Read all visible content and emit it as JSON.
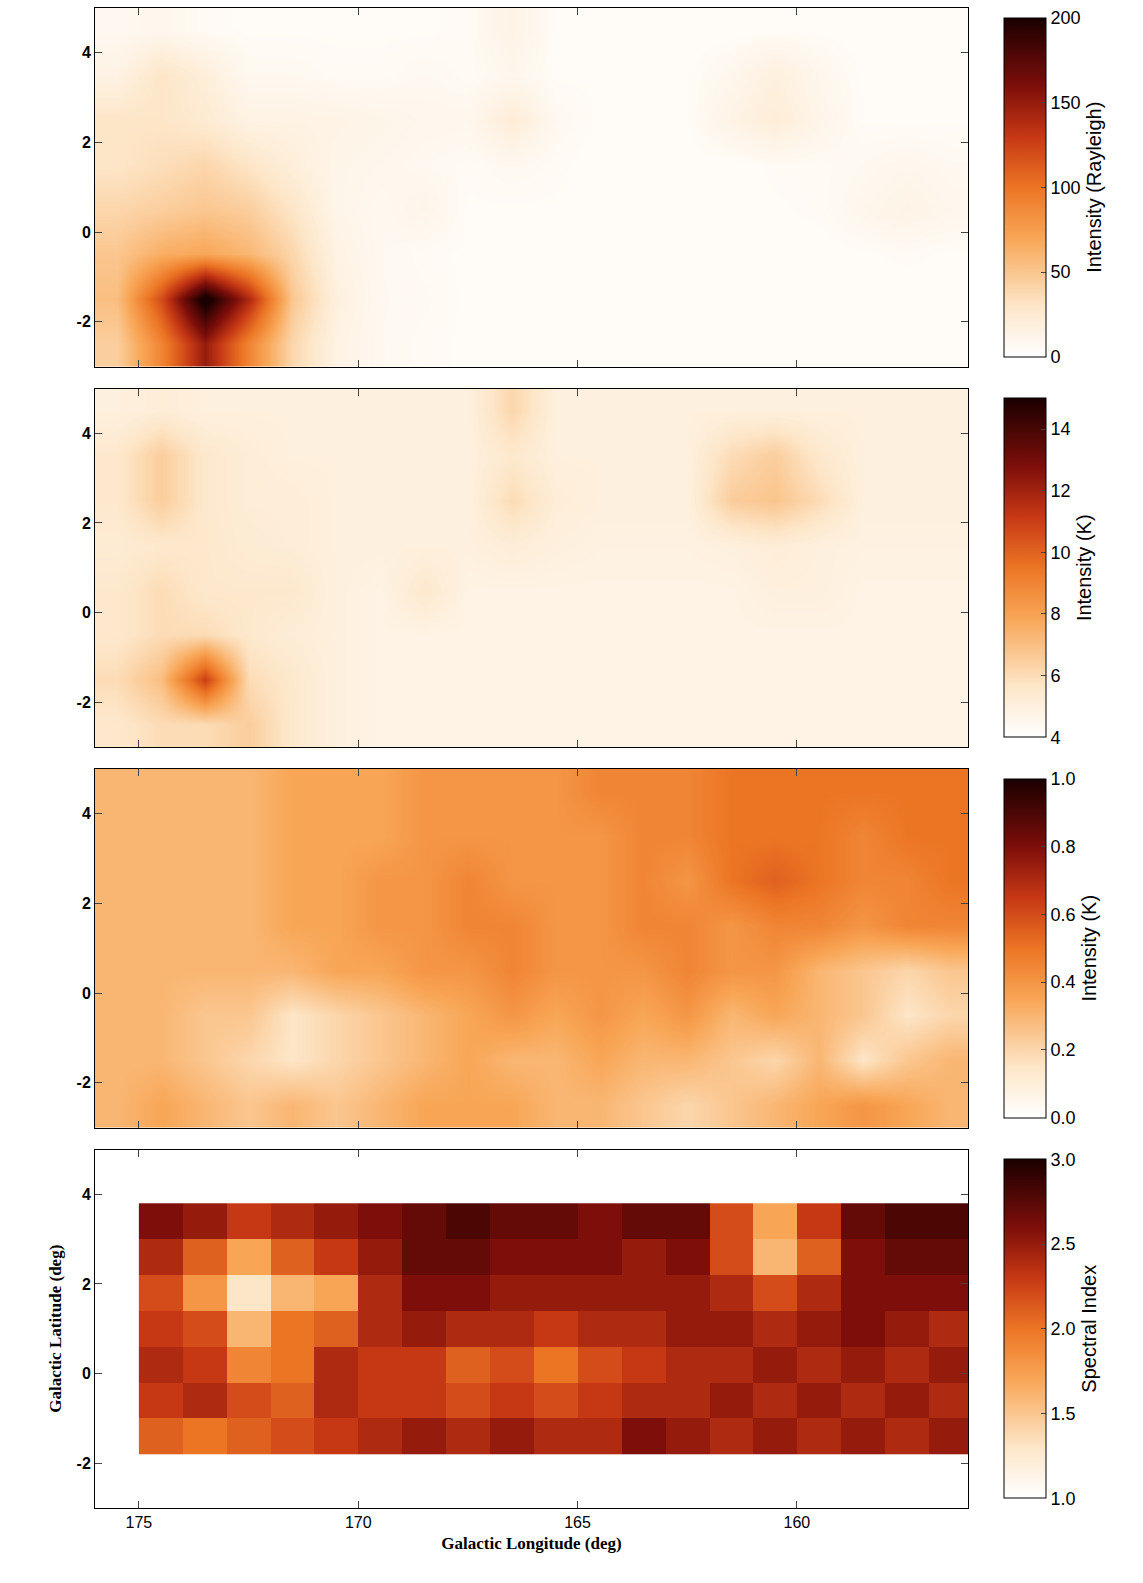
{
  "chart_data": [
    {
      "type": "heatmap",
      "tick_labels": "y",
      "xlim": [
        176,
        156.1
      ],
      "ylim": [
        -3,
        5
      ],
      "xticks": [
        175,
        170,
        165,
        160
      ],
      "yticks": [
        -2,
        0,
        2,
        4
      ],
      "x": [
        175.5,
        174.5,
        173.5,
        172.5,
        171.5,
        170.5,
        169.5,
        168.5,
        167.5,
        166.5,
        165.5,
        164.5,
        163.5,
        162.5,
        161.5,
        160.5,
        159.5,
        158.5,
        157.5,
        156.5
      ],
      "y": [
        -2.5,
        -1.5,
        -0.5,
        0.5,
        1.5,
        2.5,
        3.5,
        4.5
      ],
      "z": [
        [
          45,
          90,
          150,
          90,
          40,
          15,
          8,
          6,
          5,
          5,
          5,
          5,
          4,
          4,
          4,
          4,
          4,
          4,
          4,
          4
        ],
        [
          55,
          120,
          210,
          140,
          50,
          18,
          8,
          7,
          5,
          5,
          5,
          4,
          4,
          4,
          4,
          4,
          4,
          4,
          4,
          4
        ],
        [
          50,
          65,
          70,
          60,
          40,
          15,
          8,
          6,
          5,
          5,
          5,
          4,
          4,
          4,
          4,
          4,
          4,
          5,
          6,
          5
        ],
        [
          40,
          45,
          50,
          45,
          30,
          12,
          8,
          12,
          5,
          5,
          5,
          4,
          4,
          4,
          4,
          5,
          6,
          10,
          14,
          10
        ],
        [
          30,
          35,
          40,
          30,
          20,
          12,
          10,
          8,
          6,
          8,
          6,
          4,
          4,
          4,
          4,
          6,
          6,
          8,
          10,
          8
        ],
        [
          30,
          30,
          25,
          15,
          15,
          14,
          12,
          10,
          10,
          22,
          8,
          5,
          5,
          5,
          14,
          22,
          12,
          5,
          5,
          5
        ],
        [
          15,
          30,
          20,
          8,
          8,
          6,
          6,
          8,
          6,
          10,
          5,
          5,
          5,
          5,
          10,
          18,
          10,
          5,
          5,
          5
        ],
        [
          8,
          10,
          6,
          5,
          5,
          5,
          5,
          5,
          6,
          14,
          5,
          5,
          5,
          4,
          4,
          5,
          5,
          4,
          4,
          4
        ]
      ],
      "colorbar": {
        "title": "Intensity (Rayleigh)",
        "range": [
          0,
          200
        ],
        "ticks": [
          0,
          50,
          100,
          150,
          200
        ]
      }
    },
    {
      "type": "heatmap",
      "tick_labels": "y",
      "xlim": [
        176,
        156.1
      ],
      "ylim": [
        -3,
        5
      ],
      "xticks": [
        175,
        170,
        165,
        160
      ],
      "yticks": [
        -2,
        0,
        2,
        4
      ],
      "x": [
        175.5,
        174.5,
        173.5,
        172.5,
        171.5,
        170.5,
        169.5,
        168.5,
        167.5,
        166.5,
        165.5,
        164.5,
        163.5,
        162.5,
        161.5,
        160.5,
        159.5,
        158.5,
        157.5,
        156.5
      ],
      "y": [
        -2.5,
        -1.5,
        -0.5,
        0.5,
        1.5,
        2.5,
        3.5,
        4.5
      ],
      "z": [
        [
          5.5,
          6,
          6,
          6.5,
          5.5,
          5,
          4.8,
          4.8,
          4.8,
          4.8,
          4.8,
          4.8,
          4.8,
          4.8,
          4.8,
          4.8,
          4.8,
          4.8,
          4.8,
          4.8
        ],
        [
          6,
          7,
          11,
          6,
          5.5,
          5,
          4.8,
          4.8,
          4.8,
          4.8,
          4.8,
          4.8,
          4.8,
          4.8,
          4.8,
          4.8,
          4.8,
          4.8,
          4.8,
          4.8
        ],
        [
          5.5,
          6,
          6,
          5.5,
          5.2,
          5,
          4.8,
          4.8,
          4.8,
          4.8,
          4.8,
          4.8,
          4.8,
          4.8,
          4.8,
          4.8,
          4.8,
          4.8,
          4.8,
          4.8
        ],
        [
          5.5,
          6,
          5.5,
          5.5,
          5.5,
          5,
          4.8,
          5.5,
          4.8,
          4.8,
          4.8,
          4.8,
          4.8,
          4.8,
          4.8,
          5,
          5,
          4.8,
          4.8,
          4.8
        ],
        [
          5.3,
          5.5,
          5.5,
          5.3,
          5.2,
          5,
          5,
          5,
          5,
          5.2,
          5,
          4.9,
          4.9,
          4.9,
          5,
          5.2,
          5,
          4.9,
          4.9,
          4.9
        ],
        [
          5.5,
          6.5,
          5.5,
          5.2,
          5.2,
          5,
          5,
          5,
          5,
          6,
          5.2,
          5,
          5,
          5,
          6.5,
          6.8,
          6,
          5,
          5,
          5
        ],
        [
          5.5,
          6.5,
          5.5,
          5.2,
          5,
          5,
          5,
          5,
          5,
          5.5,
          5,
          5,
          5,
          5,
          6,
          6.5,
          5.5,
          5,
          5,
          5
        ],
        [
          5,
          5.2,
          5,
          5,
          5,
          5,
          5,
          5,
          5,
          6.2,
          5,
          5,
          5,
          5,
          5,
          5,
          5,
          5,
          5,
          5
        ]
      ],
      "colorbar": {
        "title": "Intensity (K)",
        "range": [
          4,
          15
        ],
        "ticks": [
          4,
          6,
          8,
          10,
          12,
          14
        ]
      }
    },
    {
      "type": "heatmap",
      "tick_labels": "y",
      "xlim": [
        176,
        156.1
      ],
      "ylim": [
        -3,
        5
      ],
      "xticks": [
        175,
        170,
        165,
        160
      ],
      "yticks": [
        -2,
        0,
        2,
        4
      ],
      "x": [
        175.5,
        174.5,
        173.5,
        172.5,
        171.5,
        170.5,
        169.5,
        168.5,
        167.5,
        166.5,
        165.5,
        164.5,
        163.5,
        162.5,
        161.5,
        160.5,
        159.5,
        158.5,
        157.5,
        156.5
      ],
      "y": [
        -2.5,
        -1.5,
        -0.5,
        0.5,
        1.5,
        2.5,
        3.5,
        4.5
      ],
      "z": [
        [
          0.3,
          0.35,
          0.3,
          0.25,
          0.3,
          0.25,
          0.3,
          0.35,
          0.35,
          0.35,
          0.3,
          0.3,
          0.25,
          0.2,
          0.25,
          0.3,
          0.35,
          0.4,
          0.35,
          0.3
        ],
        [
          0.3,
          0.3,
          0.25,
          0.2,
          0.15,
          0.2,
          0.25,
          0.3,
          0.35,
          0.3,
          0.3,
          0.35,
          0.3,
          0.3,
          0.25,
          0.2,
          0.3,
          0.15,
          0.25,
          0.3
        ],
        [
          0.3,
          0.3,
          0.25,
          0.25,
          0.15,
          0.2,
          0.25,
          0.3,
          0.35,
          0.4,
          0.35,
          0.4,
          0.35,
          0.4,
          0.3,
          0.35,
          0.3,
          0.25,
          0.15,
          0.2
        ],
        [
          0.3,
          0.3,
          0.3,
          0.3,
          0.3,
          0.35,
          0.35,
          0.4,
          0.4,
          0.45,
          0.4,
          0.4,
          0.4,
          0.45,
          0.4,
          0.4,
          0.3,
          0.25,
          0.2,
          0.25
        ],
        [
          0.3,
          0.3,
          0.3,
          0.3,
          0.35,
          0.35,
          0.4,
          0.4,
          0.45,
          0.45,
          0.4,
          0.4,
          0.45,
          0.45,
          0.4,
          0.45,
          0.45,
          0.4,
          0.45,
          0.45
        ],
        [
          0.3,
          0.3,
          0.3,
          0.3,
          0.35,
          0.35,
          0.4,
          0.4,
          0.45,
          0.4,
          0.4,
          0.4,
          0.45,
          0.4,
          0.5,
          0.55,
          0.5,
          0.45,
          0.45,
          0.5
        ],
        [
          0.3,
          0.3,
          0.3,
          0.3,
          0.35,
          0.35,
          0.35,
          0.4,
          0.4,
          0.4,
          0.4,
          0.4,
          0.45,
          0.45,
          0.5,
          0.5,
          0.5,
          0.45,
          0.5,
          0.5
        ],
        [
          0.3,
          0.3,
          0.3,
          0.3,
          0.35,
          0.35,
          0.35,
          0.4,
          0.4,
          0.4,
          0.4,
          0.45,
          0.45,
          0.45,
          0.5,
          0.5,
          0.5,
          0.5,
          0.5,
          0.5
        ]
      ],
      "colorbar": {
        "title": "Intensity (K)",
        "range": [
          0,
          1
        ],
        "ticks": [
          {
            "value": 0,
            "label": "0.0"
          },
          {
            "value": 0.2,
            "label": "0.2"
          },
          {
            "value": 0.4,
            "label": "0.4"
          },
          {
            "value": 0.6,
            "label": "0.6"
          },
          {
            "value": 0.8,
            "label": "0.8"
          },
          {
            "value": 1,
            "label": "1.0"
          }
        ]
      }
    },
    {
      "type": "heatmap",
      "xlabel": "Galactic Longitude (deg)",
      "ylabel": "Galactic Latitude (deg)",
      "xlim": [
        176,
        156.1
      ],
      "ylim": [
        -3,
        5
      ],
      "xticks": [
        175,
        170,
        165,
        160
      ],
      "yticks": [
        -2,
        0,
        2,
        4
      ],
      "x": [
        174.5,
        173.5,
        172.5,
        171.5,
        170.5,
        169.5,
        168.5,
        167.5,
        166.5,
        165.5,
        164.5,
        163.5,
        162.5,
        161.5,
        160.5,
        159.5,
        158.5,
        157.5,
        156.5
      ],
      "y": [
        -1.4,
        -0.6,
        0.2,
        1.0,
        1.8,
        2.6,
        3.4
      ],
      "z": [
        [
          2.1,
          2.0,
          2.1,
          2.2,
          2.3,
          2.4,
          2.5,
          2.4,
          2.5,
          2.4,
          2.4,
          2.6,
          2.5,
          2.4,
          2.5,
          2.4,
          2.5,
          2.4,
          2.5
        ],
        [
          2.3,
          2.4,
          2.2,
          2.1,
          2.4,
          2.3,
          2.3,
          2.2,
          2.3,
          2.2,
          2.3,
          2.4,
          2.4,
          2.5,
          2.4,
          2.5,
          2.4,
          2.5,
          2.4
        ],
        [
          2.4,
          2.3,
          1.9,
          2.0,
          2.4,
          2.3,
          2.3,
          2.1,
          2.2,
          2.0,
          2.2,
          2.3,
          2.4,
          2.4,
          2.5,
          2.4,
          2.5,
          2.4,
          2.5
        ],
        [
          2.3,
          2.2,
          1.6,
          2.0,
          2.1,
          2.4,
          2.5,
          2.4,
          2.4,
          2.3,
          2.4,
          2.4,
          2.5,
          2.5,
          2.4,
          2.5,
          2.6,
          2.5,
          2.4
        ],
        [
          2.2,
          1.8,
          1.3,
          1.6,
          1.7,
          2.4,
          2.6,
          2.6,
          2.5,
          2.5,
          2.5,
          2.5,
          2.5,
          2.4,
          2.2,
          2.4,
          2.6,
          2.6,
          2.6
        ],
        [
          2.4,
          2.1,
          1.7,
          2.1,
          2.3,
          2.5,
          2.7,
          2.7,
          2.6,
          2.6,
          2.6,
          2.5,
          2.6,
          2.2,
          1.6,
          2.1,
          2.6,
          2.7,
          2.7
        ],
        [
          2.6,
          2.5,
          2.3,
          2.4,
          2.5,
          2.6,
          2.7,
          2.8,
          2.7,
          2.7,
          2.6,
          2.7,
          2.7,
          2.2,
          1.7,
          2.3,
          2.7,
          2.8,
          2.8
        ]
      ],
      "colorbar": {
        "title": "Spectral Index",
        "range": [
          1,
          3
        ],
        "ticks": [
          {
            "value": 1,
            "label": "1.0"
          },
          {
            "value": 1.5,
            "label": "1.5"
          },
          {
            "value": 2,
            "label": "2.0"
          },
          {
            "value": 2.5,
            "label": "2.5"
          },
          {
            "value": 3,
            "label": "3.0"
          }
        ]
      }
    }
  ]
}
